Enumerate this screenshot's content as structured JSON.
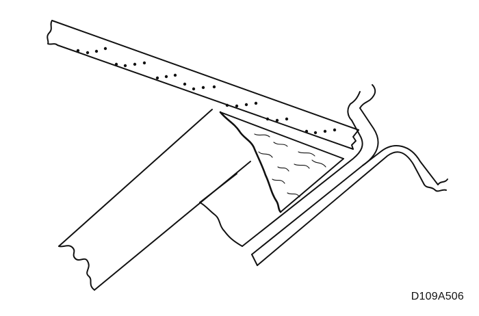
{
  "figure": {
    "code": "D109A506"
  },
  "colors": {
    "stroke": "#111111",
    "background": "#ffffff"
  }
}
